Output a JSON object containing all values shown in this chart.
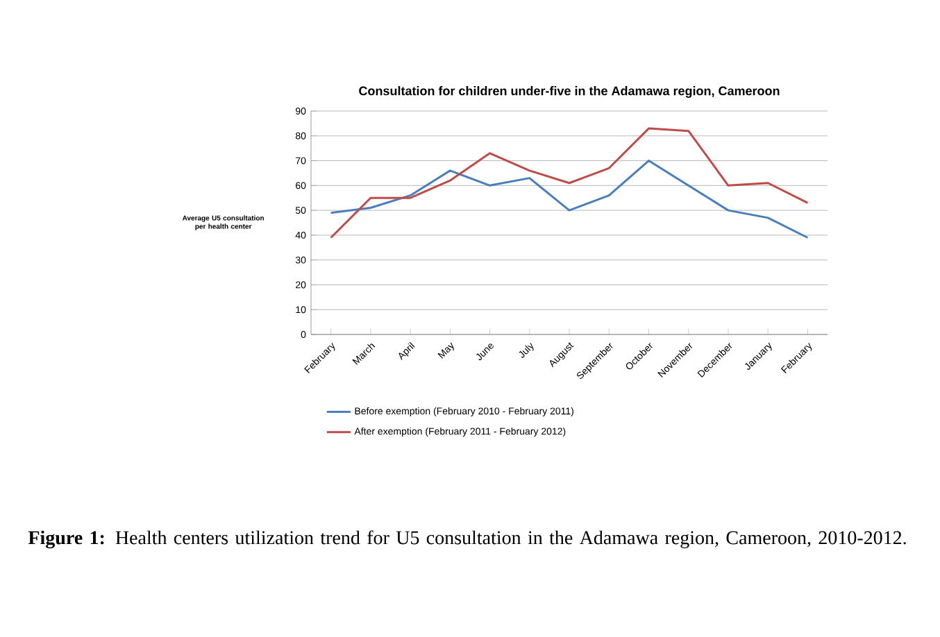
{
  "chart_data": {
    "type": "line",
    "title": "Consultation for children under-five in the Adamawa region, Cameroon",
    "ylabel": "Average U5 consultation per health center",
    "categories": [
      "February",
      "March",
      "April",
      "May",
      "June",
      "July",
      "August",
      "September",
      "October",
      "November",
      "December",
      "January",
      "February"
    ],
    "series": [
      {
        "name": "Before exemption (February 2010 - February 2011)",
        "color": "#4a7ebb",
        "values": [
          49,
          51,
          56,
          66,
          60,
          63,
          50,
          56,
          70,
          60,
          50,
          47,
          39
        ]
      },
      {
        "name": "After exemption (February 2011 - February 2012)",
        "color": "#be4b48",
        "values": [
          39,
          55,
          55,
          62,
          73,
          66,
          61,
          67,
          83,
          82,
          60,
          61,
          53
        ]
      }
    ],
    "ylim": [
      0,
      90
    ],
    "yticks": [
      0,
      10,
      20,
      30,
      40,
      50,
      60,
      70,
      80,
      90
    ],
    "grid": "y",
    "legend": "bottom",
    "marker": "none",
    "line_style": "solid",
    "annotations": [
      "**Figure 1:** Health centers utilization trend for U5 consultation in the Adamawa region, Cameroon, 2010-2012."
    ]
  }
}
